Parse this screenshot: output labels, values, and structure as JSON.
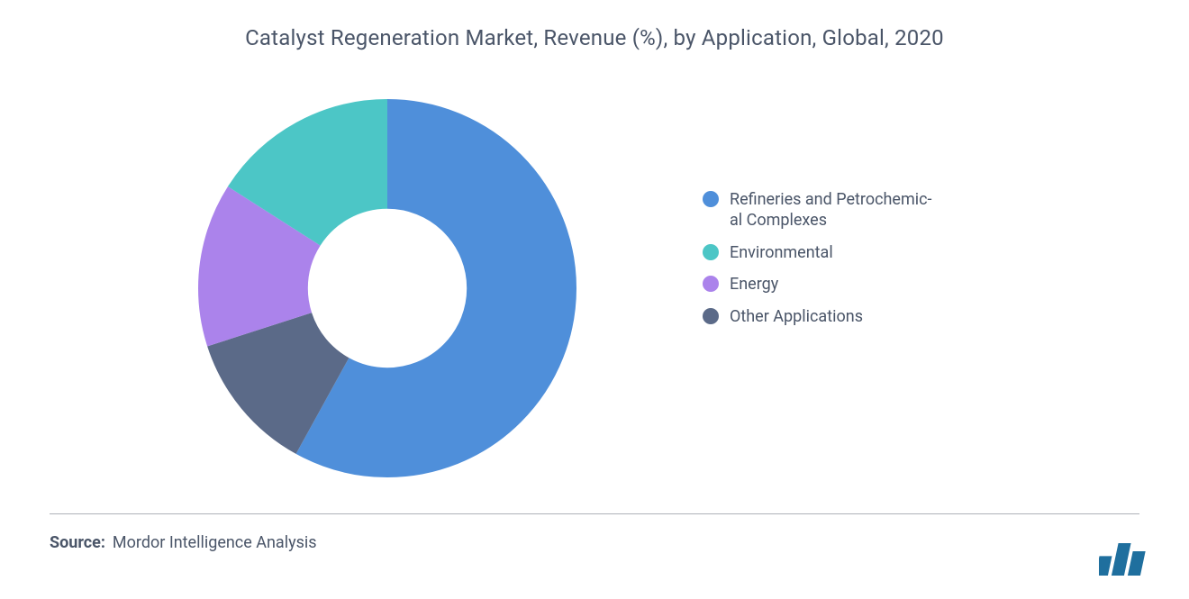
{
  "title": "Catalyst Regeneration Market, Revenue (%), by Application, Global, 2020",
  "title_color": "#4a5568",
  "title_fontsize": 24,
  "chart": {
    "type": "donut",
    "start_angle_deg": 0,
    "inner_radius_ratio": 0.45,
    "stroke_width": 58,
    "bg_color": "#ffffff",
    "segments": [
      {
        "key": "refineries",
        "label_lines": [
          "Refineries and Petrochemic-",
          "al Complexes"
        ],
        "value": 58,
        "color": "#4f8fda"
      },
      {
        "key": "other",
        "label_lines": [
          "Other Applications"
        ],
        "value": 12,
        "color": "#5b6a88"
      },
      {
        "key": "energy",
        "label_lines": [
          "Energy"
        ],
        "value": 14,
        "color": "#ab83eb"
      },
      {
        "key": "environmental",
        "label_lines": [
          "Environmental"
        ],
        "value": 16,
        "color": "#4cc6c6"
      }
    ],
    "legend_order": [
      "refineries",
      "environmental",
      "energy",
      "other"
    ]
  },
  "legend": {
    "label_fontsize": 18,
    "label_color": "#4a5568",
    "swatch_diameter": 18
  },
  "source": {
    "label": "Source:",
    "text": "Mordor Intelligence Analysis",
    "label_weight": 700,
    "fontsize": 18,
    "color": "#4a5568"
  },
  "rule_color": "#6b7280",
  "logo": {
    "bar_color": "#1f6f9e",
    "bars": [
      0.6,
      1.0,
      0.75
    ]
  }
}
